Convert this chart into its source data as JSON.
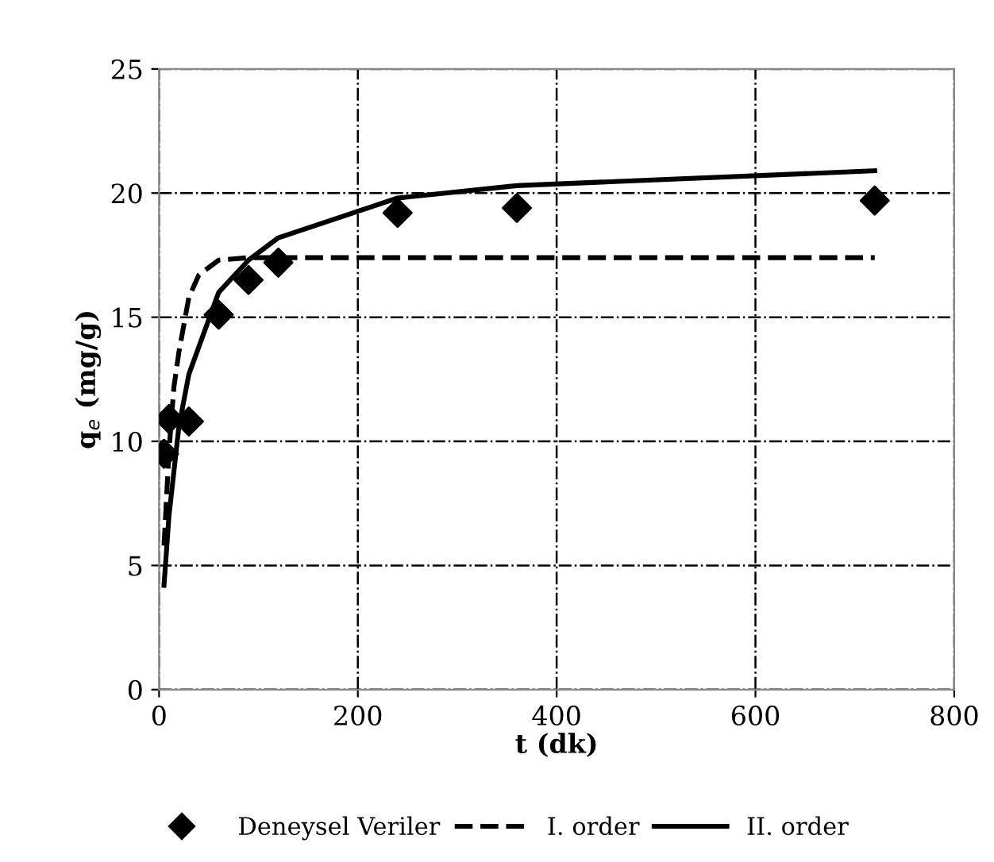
{
  "chart_data": {
    "type": "scatter",
    "xlabel": "t (dk)",
    "ylabel": "q$_{e}$ (mg/g)",
    "xlim": [
      0,
      800
    ],
    "xticks": [
      0,
      200,
      400,
      600,
      800
    ],
    "ylim": [
      0,
      25
    ],
    "yticks": [
      0,
      5,
      10,
      15,
      20,
      25
    ],
    "grid": true,
    "legend": "bottom",
    "series": [
      {
        "name": "Deneysel Veriler",
        "marker": "diamond",
        "color": "#000000",
        "x": [
          5,
          10,
          30,
          60,
          90,
          120,
          240,
          360,
          720
        ],
        "values": [
          9.5,
          10.9,
          10.8,
          15.1,
          16.5,
          17.2,
          19.2,
          19.4,
          19.7
        ]
      },
      {
        "name": "I. order",
        "type": "line",
        "line_style": "dashed",
        "color": "#000000",
        "x": [
          5,
          10,
          15,
          20,
          30,
          40,
          60,
          90,
          120,
          240,
          360,
          720
        ],
        "values": [
          5.8,
          9.6,
          12.2,
          13.6,
          15.8,
          16.7,
          17.3,
          17.4,
          17.4,
          17.4,
          17.4,
          17.4
        ]
      },
      {
        "name": "II. order",
        "type": "line",
        "line_style": "solid",
        "color": "#000000",
        "x": [
          5,
          10,
          20,
          30,
          60,
          90,
          120,
          240,
          360,
          720
        ],
        "values": [
          4.2,
          7.0,
          10.6,
          12.7,
          16.0,
          17.3,
          18.2,
          19.8,
          20.3,
          20.9
        ]
      }
    ]
  }
}
